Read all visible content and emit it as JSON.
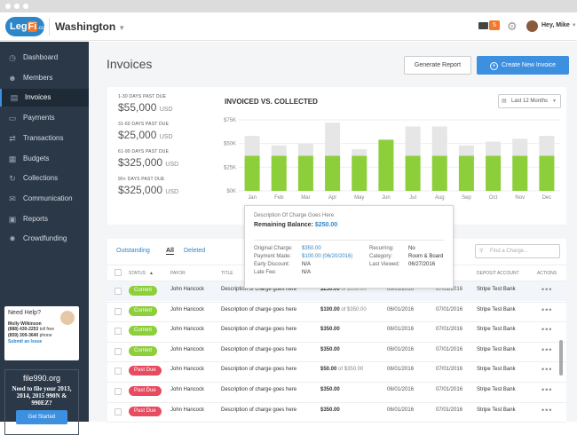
{
  "header": {
    "logo_main": "Leg",
    "logo_fi": "Fi",
    "logo_suffix": ".com",
    "location": "Washington",
    "message_count": "5",
    "greeting": "Hey, Mike"
  },
  "sidebar": {
    "items": [
      {
        "label": "Dashboard",
        "icon": "clock-icon"
      },
      {
        "label": "Members",
        "icon": "users-icon"
      },
      {
        "label": "Invoices",
        "icon": "invoice-icon",
        "active": true
      },
      {
        "label": "Payments",
        "icon": "card-icon"
      },
      {
        "label": "Transactions",
        "icon": "arrows-icon"
      },
      {
        "label": "Budgets",
        "icon": "calendar-icon"
      },
      {
        "label": "Collections",
        "icon": "refresh-icon"
      },
      {
        "label": "Communication",
        "icon": "chat-icon"
      },
      {
        "label": "Reports",
        "icon": "document-icon"
      },
      {
        "label": "Crowdfunding",
        "icon": "network-icon"
      }
    ],
    "help": {
      "title": "Need Help?",
      "name": "Molly Wilkinson",
      "phone1": "(888) 430-2253",
      "phone1_suffix": "toll free",
      "phone2": "(859) 309-3640",
      "phone2_suffix": "phone",
      "submit": "Submit an Issue"
    },
    "promo": {
      "site": "file990.org",
      "text": "Need to file your 2013, 2014, 2015 990N & 990EZ?",
      "button": "Get Started"
    }
  },
  "page": {
    "title": "Invoices",
    "generate_report": "Generate Report",
    "create_invoice": "Create New Invoice"
  },
  "summary": [
    {
      "label": "1-30 DAYS PAST DUE",
      "value": "$55,000",
      "unit": "USD"
    },
    {
      "label": "31-60 DAYS PAST DUE",
      "value": "$25,000",
      "unit": "USD"
    },
    {
      "label": "61-90 DAYS PAST DUE",
      "value": "$325,000",
      "unit": "USD"
    },
    {
      "label": "90+ DAYS PAST DUE",
      "value": "$325,000",
      "unit": "USD"
    }
  ],
  "chart_data": {
    "type": "bar",
    "title": "INVOICED VS. COLLECTED",
    "range_label": "Last 12 Months",
    "categories": [
      "Jan",
      "Feb",
      "Mar",
      "Apr",
      "May",
      "Jun",
      "Jul",
      "Aug",
      "Sep",
      "Oct",
      "Nov",
      "Dec"
    ],
    "y_ticks": [
      "$0K",
      "$25K",
      "$50K",
      "$75K"
    ],
    "ylim": [
      0,
      75
    ],
    "series": [
      {
        "name": "",
        "color": "#e6e6e6",
        "values": [
          58,
          48,
          50,
          72,
          44,
          54,
          68,
          68,
          48,
          52,
          55,
          58
        ]
      },
      {
        "name": "",
        "color": "#8ccf3a",
        "values": [
          37,
          37,
          37,
          37,
          37,
          54,
          37,
          37,
          37,
          37,
          37,
          37
        ]
      }
    ]
  },
  "table": {
    "filters": {
      "outstanding": "Outstanding",
      "all": "All",
      "deleted": "Deleted"
    },
    "search_placeholder": "Find a Charge...",
    "headers": [
      "STATUS",
      "PAYOR",
      "TITLE",
      "",
      "",
      "",
      "DEPOSIT ACCOUNT",
      "ACTIONS"
    ],
    "rows": [
      {
        "status": "Current",
        "payor": "John Hancock",
        "title": "Description of charge goes here",
        "amount": "$250.00",
        "of": "of $350.00",
        "d1": "06/01/2016",
        "d2": "07/01/2016",
        "account": "Stripe Test Bank"
      },
      {
        "status": "Current",
        "payor": "John Hancock",
        "title": "Description of charge goes here",
        "amount": "$100.00",
        "of": "of $350.00",
        "d1": "06/01/2016",
        "d2": "07/01/2016",
        "account": "Stripe Test Bank"
      },
      {
        "status": "Current",
        "payor": "John Hancock",
        "title": "Description of charge goes here",
        "amount": "$350.00",
        "of": "",
        "d1": "06/01/2016",
        "d2": "07/01/2016",
        "account": "Stripe Test Bank"
      },
      {
        "status": "Current",
        "payor": "John Hancock",
        "title": "Description of charge goes here",
        "amount": "$350.00",
        "of": "",
        "d1": "06/01/2016",
        "d2": "07/01/2016",
        "account": "Stripe Test Bank"
      },
      {
        "status": "Past Due",
        "payor": "John Hancock",
        "title": "Description of charge goes here",
        "amount": "$50.00",
        "of": "of $350.00",
        "d1": "06/01/2016",
        "d2": "07/01/2016",
        "account": "Stripe Test Bank"
      },
      {
        "status": "Past Due",
        "payor": "John Hancock",
        "title": "Description of charge goes here",
        "amount": "$350.00",
        "of": "",
        "d1": "06/01/2016",
        "d2": "07/01/2016",
        "account": "Stripe Test Bank"
      },
      {
        "status": "Past Due",
        "payor": "John Hancock",
        "title": "Description of charge goes here",
        "amount": "$350.00",
        "of": "",
        "d1": "06/01/2016",
        "d2": "07/01/2016",
        "account": "Stripe Test Bank"
      }
    ],
    "status_colors": {
      "Current": "#8ccf3a",
      "Past Due": "#e84a5f"
    }
  },
  "tooltip": {
    "desc": "Description Of Charge Goes Here",
    "remaining_label": "Remaining Balance:",
    "remaining_value": "$250.00",
    "fields_left": [
      {
        "k": "Original Charge:",
        "v": "$350.00"
      },
      {
        "k": "Payment Made:",
        "v": "$100.00 (06/20/2016)"
      },
      {
        "k": "Early Discount:",
        "v": "N/A"
      },
      {
        "k": "Late Fee:",
        "v": "N/A"
      }
    ],
    "fields_right": [
      {
        "k": "Recurring:",
        "v": "No"
      },
      {
        "k": "Category:",
        "v": "Room & Board"
      },
      {
        "k": "Last Viewed:",
        "v": "06/27/2016"
      }
    ]
  }
}
